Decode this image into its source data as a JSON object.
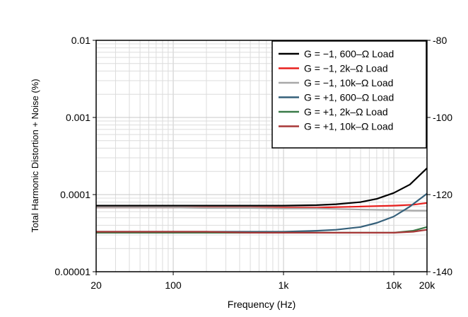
{
  "chart_data": {
    "type": "line",
    "xlabel": "Frequency (Hz)",
    "ylabel": "Total Harmonic Distortion + Noise (%)",
    "x_scale": "log",
    "y_scale": "log",
    "xlim": [
      20,
      20000
    ],
    "ylim": [
      1e-05,
      0.01
    ],
    "y2lim": [
      -140,
      -80
    ],
    "grid": true,
    "legend_position": "top-right",
    "x_ticks": [
      {
        "value": 20,
        "label": "20"
      },
      {
        "value": 100,
        "label": "100"
      },
      {
        "value": 1000,
        "label": "1k"
      },
      {
        "value": 10000,
        "label": "10k"
      },
      {
        "value": 20000,
        "label": "20k"
      }
    ],
    "y_ticks": [
      {
        "value": 0.01,
        "label": "0.01"
      },
      {
        "value": 0.001,
        "label": "0.001"
      },
      {
        "value": 0.0001,
        "label": "0.0001"
      },
      {
        "value": 1e-05,
        "label": "0.00001"
      }
    ],
    "y2_ticks": [
      {
        "value": -80,
        "label": "-80"
      },
      {
        "value": -100,
        "label": "-100"
      },
      {
        "value": -120,
        "label": "-120"
      },
      {
        "value": -140,
        "label": "-140"
      }
    ],
    "series": [
      {
        "name": "G = −1, 600–Ω Load",
        "color": "#000000",
        "x": [
          20,
          50,
          100,
          200,
          500,
          1000,
          2000,
          3000,
          5000,
          7000,
          10000,
          14000,
          20000
        ],
        "y": [
          7.2e-05,
          7.2e-05,
          7.2e-05,
          7.2e-05,
          7.2e-05,
          7.2e-05,
          7.3e-05,
          7.5e-05,
          8e-05,
          8.8e-05,
          0.000105,
          0.000135,
          0.00022
        ]
      },
      {
        "name": "G = −1, 2k–Ω Load",
        "color": "#e8201e",
        "x": [
          20,
          50,
          100,
          200,
          500,
          1000,
          2000,
          5000,
          10000,
          15000,
          20000
        ],
        "y": [
          6.8e-05,
          6.8e-05,
          6.8e-05,
          6.8e-05,
          6.8e-05,
          6.8e-05,
          6.8e-05,
          7e-05,
          7.2e-05,
          7.4e-05,
          7.8e-05
        ]
      },
      {
        "name": "G = −1, 10k–Ω Load",
        "color": "#a8a8a8",
        "x": [
          20,
          50,
          100,
          200,
          500,
          1000,
          2000,
          5000,
          10000,
          15000,
          20000
        ],
        "y": [
          6.8e-05,
          6.8e-05,
          6.8e-05,
          6.7e-05,
          6.7e-05,
          6.6e-05,
          6.6e-05,
          6.4e-05,
          6.3e-05,
          6.2e-05,
          6.2e-05
        ]
      },
      {
        "name": "G = +1, 600–Ω Load",
        "color": "#35607a",
        "x": [
          20,
          50,
          100,
          200,
          500,
          1000,
          2000,
          3000,
          5000,
          7000,
          10000,
          14000,
          20000
        ],
        "y": [
          3.3e-05,
          3.3e-05,
          3.3e-05,
          3.3e-05,
          3.3e-05,
          3.3e-05,
          3.4e-05,
          3.5e-05,
          3.8e-05,
          4.3e-05,
          5.2e-05,
          7e-05,
          0.000103
        ]
      },
      {
        "name": "G = +1, 2k–Ω Load",
        "color": "#3a7a48",
        "x": [
          20,
          50,
          100,
          200,
          500,
          1000,
          2000,
          5000,
          10000,
          15000,
          20000
        ],
        "y": [
          3.2e-05,
          3.2e-05,
          3.2e-05,
          3.2e-05,
          3.2e-05,
          3.2e-05,
          3.2e-05,
          3.2e-05,
          3.2e-05,
          3.4e-05,
          3.8e-05
        ]
      },
      {
        "name": "G = +1, 10k–Ω Load",
        "color": "#a83838",
        "x": [
          20,
          50,
          100,
          200,
          500,
          1000,
          2000,
          5000,
          10000,
          15000,
          20000
        ],
        "y": [
          3.3e-05,
          3.3e-05,
          3.3e-05,
          3.3e-05,
          3.2e-05,
          3.2e-05,
          3.2e-05,
          3.2e-05,
          3.2e-05,
          3.3e-05,
          3.5e-05
        ]
      }
    ]
  }
}
